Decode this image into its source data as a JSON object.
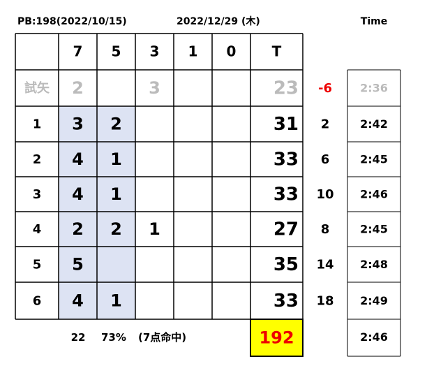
{
  "header": {
    "pb": "PB:198(2022/10/15)",
    "date": "2022/12/29 (木)",
    "time_label": "Time"
  },
  "table": {
    "columns": [
      "7",
      "5",
      "3",
      "1",
      "0",
      "T"
    ],
    "rows": [
      {
        "label": "試矢",
        "cells": [
          2,
          null,
          3,
          null,
          null
        ],
        "total": 23,
        "diff": -6,
        "time": "2:36"
      },
      {
        "label": "1",
        "cells": [
          3,
          2,
          null,
          null,
          null
        ],
        "total": 31,
        "diff": 2,
        "time": "2:42"
      },
      {
        "label": "2",
        "cells": [
          4,
          1,
          null,
          null,
          null
        ],
        "total": 33,
        "diff": 6,
        "time": "2:45"
      },
      {
        "label": "3",
        "cells": [
          4,
          1,
          null,
          null,
          null
        ],
        "total": 33,
        "diff": 10,
        "time": "2:46"
      },
      {
        "label": "4",
        "cells": [
          2,
          2,
          1,
          null,
          null
        ],
        "total": 27,
        "diff": 8,
        "time": "2:45"
      },
      {
        "label": "5",
        "cells": [
          5,
          null,
          null,
          null,
          null
        ],
        "total": 35,
        "diff": 14,
        "time": "2:48"
      },
      {
        "label": "6",
        "cells": [
          4,
          1,
          null,
          null,
          null
        ],
        "total": 33,
        "diff": 18,
        "time": "2:49"
      }
    ]
  },
  "footer": {
    "hits": "22",
    "rate": "73%",
    "note": "(7点命中)",
    "total": 192,
    "time": "2:46"
  }
}
